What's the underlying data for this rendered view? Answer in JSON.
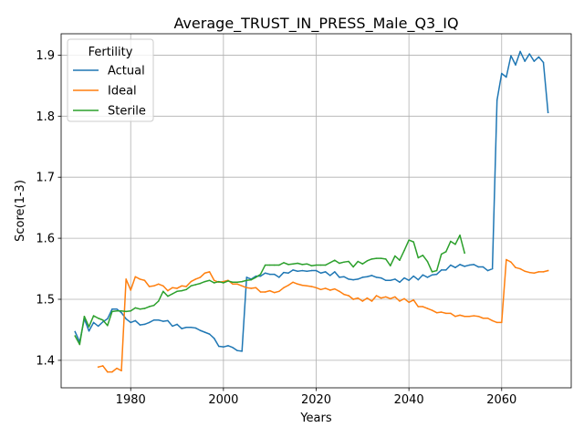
{
  "chart_data": {
    "type": "line",
    "title": "Average_TRUST_IN_PRESS_Male_Q3_IQ",
    "xlabel": "Years",
    "ylabel": "Score(1-3)",
    "xlim": [
      1965,
      2075
    ],
    "ylim": [
      1.355,
      1.935
    ],
    "x_ticks": [
      1980,
      2000,
      2020,
      2040,
      2060
    ],
    "y_ticks": [
      1.4,
      1.5,
      1.6,
      1.7,
      1.8,
      1.9
    ],
    "grid": true,
    "legend": {
      "title": "Fertility",
      "placement": "top-left"
    },
    "series": [
      {
        "name": "Actual",
        "color": "#1f77b4",
        "points": [
          [
            1968,
            1.447
          ],
          [
            1969,
            1.43
          ],
          [
            1970,
            1.468
          ],
          [
            1971,
            1.448
          ],
          [
            1972,
            1.462
          ],
          [
            1973,
            1.456
          ],
          [
            1974,
            1.463
          ],
          [
            1975,
            1.468
          ],
          [
            1976,
            1.484
          ],
          [
            1977,
            1.484
          ],
          [
            1978,
            1.478
          ],
          [
            1979,
            1.468
          ],
          [
            1980,
            1.462
          ],
          [
            1981,
            1.465
          ],
          [
            1982,
            1.458
          ],
          [
            1983,
            1.459
          ],
          [
            1984,
            1.462
          ],
          [
            1985,
            1.466
          ],
          [
            1986,
            1.466
          ],
          [
            1987,
            1.464
          ],
          [
            1988,
            1.465
          ],
          [
            1989,
            1.456
          ],
          [
            1990,
            1.459
          ],
          [
            1991,
            1.452
          ],
          [
            1992,
            1.454
          ],
          [
            1993,
            1.454
          ],
          [
            1994,
            1.453
          ],
          [
            1995,
            1.449
          ],
          [
            1996,
            1.446
          ],
          [
            1997,
            1.443
          ],
          [
            1998,
            1.436
          ],
          [
            1999,
            1.423
          ],
          [
            2000,
            1.422
          ],
          [
            2001,
            1.424
          ],
          [
            2002,
            1.421
          ],
          [
            2003,
            1.416
          ],
          [
            2004,
            1.415
          ],
          [
            2005,
            1.536
          ],
          [
            2006,
            1.533
          ],
          [
            2007,
            1.538
          ],
          [
            2008,
            1.538
          ],
          [
            2009,
            1.543
          ],
          [
            2010,
            1.541
          ],
          [
            2011,
            1.541
          ],
          [
            2012,
            1.536
          ],
          [
            2013,
            1.544
          ],
          [
            2014,
            1.543
          ],
          [
            2015,
            1.548
          ],
          [
            2016,
            1.546
          ],
          [
            2017,
            1.547
          ],
          [
            2018,
            1.546
          ],
          [
            2019,
            1.547
          ],
          [
            2020,
            1.547
          ],
          [
            2021,
            1.543
          ],
          [
            2022,
            1.545
          ],
          [
            2023,
            1.539
          ],
          [
            2024,
            1.545
          ],
          [
            2025,
            1.536
          ],
          [
            2026,
            1.537
          ],
          [
            2027,
            1.533
          ],
          [
            2028,
            1.532
          ],
          [
            2029,
            1.533
          ],
          [
            2030,
            1.536
          ],
          [
            2031,
            1.537
          ],
          [
            2032,
            1.539
          ],
          [
            2033,
            1.536
          ],
          [
            2034,
            1.535
          ],
          [
            2035,
            1.531
          ],
          [
            2036,
            1.531
          ],
          [
            2037,
            1.533
          ],
          [
            2038,
            1.528
          ],
          [
            2039,
            1.535
          ],
          [
            2040,
            1.531
          ],
          [
            2041,
            1.538
          ],
          [
            2042,
            1.532
          ],
          [
            2043,
            1.54
          ],
          [
            2044,
            1.536
          ],
          [
            2045,
            1.54
          ],
          [
            2046,
            1.541
          ],
          [
            2047,
            1.548
          ],
          [
            2048,
            1.548
          ],
          [
            2049,
            1.556
          ],
          [
            2050,
            1.552
          ],
          [
            2051,
            1.557
          ],
          [
            2052,
            1.554
          ],
          [
            2053,
            1.556
          ],
          [
            2054,
            1.557
          ],
          [
            2055,
            1.553
          ],
          [
            2056,
            1.553
          ],
          [
            2057,
            1.547
          ],
          [
            2058,
            1.55
          ],
          [
            2059,
            1.826
          ],
          [
            2060,
            1.87
          ],
          [
            2061,
            1.864
          ],
          [
            2062,
            1.899
          ],
          [
            2063,
            1.884
          ],
          [
            2064,
            1.906
          ],
          [
            2065,
            1.89
          ],
          [
            2066,
            1.902
          ],
          [
            2067,
            1.89
          ],
          [
            2068,
            1.897
          ],
          [
            2069,
            1.888
          ],
          [
            2070,
            1.806
          ]
        ]
      },
      {
        "name": "Ideal",
        "color": "#ff7f0e",
        "points": [
          [
            1973,
            1.389
          ],
          [
            1974,
            1.391
          ],
          [
            1975,
            1.381
          ],
          [
            1976,
            1.381
          ],
          [
            1977,
            1.387
          ],
          [
            1978,
            1.383
          ],
          [
            1979,
            1.533
          ],
          [
            1980,
            1.515
          ],
          [
            1981,
            1.537
          ],
          [
            1982,
            1.533
          ],
          [
            1983,
            1.531
          ],
          [
            1984,
            1.521
          ],
          [
            1985,
            1.522
          ],
          [
            1986,
            1.525
          ],
          [
            1987,
            1.522
          ],
          [
            1988,
            1.514
          ],
          [
            1989,
            1.519
          ],
          [
            1990,
            1.518
          ],
          [
            1991,
            1.522
          ],
          [
            1992,
            1.521
          ],
          [
            1993,
            1.529
          ],
          [
            1994,
            1.533
          ],
          [
            1995,
            1.536
          ],
          [
            1996,
            1.543
          ],
          [
            1997,
            1.545
          ],
          [
            1998,
            1.531
          ],
          [
            1999,
            1.528
          ],
          [
            2000,
            1.529
          ],
          [
            2001,
            1.531
          ],
          [
            2002,
            1.525
          ],
          [
            2003,
            1.525
          ],
          [
            2004,
            1.522
          ],
          [
            2005,
            1.519
          ],
          [
            2006,
            1.518
          ],
          [
            2007,
            1.519
          ],
          [
            2008,
            1.512
          ],
          [
            2009,
            1.512
          ],
          [
            2010,
            1.514
          ],
          [
            2011,
            1.511
          ],
          [
            2012,
            1.513
          ],
          [
            2013,
            1.519
          ],
          [
            2014,
            1.523
          ],
          [
            2015,
            1.528
          ],
          [
            2016,
            1.525
          ],
          [
            2017,
            1.523
          ],
          [
            2018,
            1.522
          ],
          [
            2019,
            1.521
          ],
          [
            2020,
            1.519
          ],
          [
            2021,
            1.516
          ],
          [
            2022,
            1.518
          ],
          [
            2023,
            1.515
          ],
          [
            2024,
            1.517
          ],
          [
            2025,
            1.513
          ],
          [
            2026,
            1.508
          ],
          [
            2027,
            1.506
          ],
          [
            2028,
            1.5
          ],
          [
            2029,
            1.502
          ],
          [
            2030,
            1.497
          ],
          [
            2031,
            1.502
          ],
          [
            2032,
            1.497
          ],
          [
            2033,
            1.506
          ],
          [
            2034,
            1.502
          ],
          [
            2035,
            1.504
          ],
          [
            2036,
            1.501
          ],
          [
            2037,
            1.504
          ],
          [
            2038,
            1.497
          ],
          [
            2039,
            1.501
          ],
          [
            2040,
            1.495
          ],
          [
            2041,
            1.499
          ],
          [
            2042,
            1.488
          ],
          [
            2043,
            1.488
          ],
          [
            2044,
            1.485
          ],
          [
            2045,
            1.482
          ],
          [
            2046,
            1.478
          ],
          [
            2047,
            1.479
          ],
          [
            2048,
            1.477
          ],
          [
            2049,
            1.477
          ],
          [
            2050,
            1.472
          ],
          [
            2051,
            1.474
          ],
          [
            2052,
            1.472
          ],
          [
            2053,
            1.472
          ],
          [
            2054,
            1.473
          ],
          [
            2055,
            1.472
          ],
          [
            2056,
            1.469
          ],
          [
            2057,
            1.469
          ],
          [
            2058,
            1.465
          ],
          [
            2059,
            1.462
          ],
          [
            2060,
            1.462
          ],
          [
            2061,
            1.565
          ],
          [
            2062,
            1.561
          ],
          [
            2063,
            1.552
          ],
          [
            2064,
            1.55
          ],
          [
            2065,
            1.546
          ],
          [
            2066,
            1.544
          ],
          [
            2067,
            1.543
          ],
          [
            2068,
            1.545
          ],
          [
            2069,
            1.545
          ],
          [
            2070,
            1.547
          ]
        ]
      },
      {
        "name": "Sterile",
        "color": "#2ca02c",
        "points": [
          [
            1968,
            1.44
          ],
          [
            1969,
            1.426
          ],
          [
            1970,
            1.472
          ],
          [
            1971,
            1.455
          ],
          [
            1972,
            1.473
          ],
          [
            1973,
            1.469
          ],
          [
            1974,
            1.466
          ],
          [
            1975,
            1.457
          ],
          [
            1976,
            1.48
          ],
          [
            1977,
            1.481
          ],
          [
            1978,
            1.481
          ],
          [
            1979,
            1.48
          ],
          [
            1980,
            1.481
          ],
          [
            1981,
            1.486
          ],
          [
            1982,
            1.484
          ],
          [
            1983,
            1.485
          ],
          [
            1984,
            1.488
          ],
          [
            1985,
            1.49
          ],
          [
            1986,
            1.497
          ],
          [
            1987,
            1.513
          ],
          [
            1988,
            1.505
          ],
          [
            1989,
            1.509
          ],
          [
            1990,
            1.513
          ],
          [
            1991,
            1.514
          ],
          [
            1992,
            1.516
          ],
          [
            1993,
            1.522
          ],
          [
            1994,
            1.524
          ],
          [
            1995,
            1.526
          ],
          [
            1996,
            1.529
          ],
          [
            1997,
            1.531
          ],
          [
            1998,
            1.527
          ],
          [
            1999,
            1.529
          ],
          [
            2000,
            1.527
          ],
          [
            2001,
            1.53
          ],
          [
            2002,
            1.528
          ],
          [
            2003,
            1.528
          ],
          [
            2004,
            1.529
          ],
          [
            2005,
            1.531
          ],
          [
            2006,
            1.532
          ],
          [
            2007,
            1.536
          ],
          [
            2008,
            1.541
          ],
          [
            2009,
            1.556
          ],
          [
            2010,
            1.556
          ],
          [
            2011,
            1.556
          ],
          [
            2012,
            1.556
          ],
          [
            2013,
            1.56
          ],
          [
            2014,
            1.557
          ],
          [
            2015,
            1.558
          ],
          [
            2016,
            1.559
          ],
          [
            2017,
            1.557
          ],
          [
            2018,
            1.558
          ],
          [
            2019,
            1.555
          ],
          [
            2020,
            1.556
          ],
          [
            2021,
            1.556
          ],
          [
            2022,
            1.556
          ],
          [
            2023,
            1.56
          ],
          [
            2024,
            1.564
          ],
          [
            2025,
            1.559
          ],
          [
            2026,
            1.561
          ],
          [
            2027,
            1.562
          ],
          [
            2028,
            1.553
          ],
          [
            2029,
            1.562
          ],
          [
            2030,
            1.558
          ],
          [
            2031,
            1.563
          ],
          [
            2032,
            1.566
          ],
          [
            2033,
            1.567
          ],
          [
            2034,
            1.567
          ],
          [
            2035,
            1.566
          ],
          [
            2036,
            1.555
          ],
          [
            2037,
            1.571
          ],
          [
            2038,
            1.564
          ],
          [
            2039,
            1.58
          ],
          [
            2040,
            1.597
          ],
          [
            2041,
            1.594
          ],
          [
            2042,
            1.568
          ],
          [
            2043,
            1.572
          ],
          [
            2044,
            1.562
          ],
          [
            2045,
            1.545
          ],
          [
            2046,
            1.547
          ],
          [
            2047,
            1.574
          ],
          [
            2048,
            1.578
          ],
          [
            2049,
            1.595
          ],
          [
            2050,
            1.59
          ],
          [
            2051,
            1.605
          ],
          [
            2052,
            1.576
          ]
        ]
      }
    ]
  }
}
